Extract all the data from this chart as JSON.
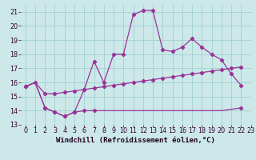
{
  "background_color": "#cce8e8",
  "grid_color": "#99cccc",
  "line_color": "#993399",
  "xlabel": "Windchill (Refroidissement éolien,°C)",
  "xlabel_fontsize": 6.5,
  "tick_fontsize": 5.8,
  "xlim": [
    -0.5,
    23
  ],
  "ylim": [
    13,
    21.5
  ],
  "yticks": [
    13,
    14,
    15,
    16,
    17,
    18,
    19,
    20,
    21
  ],
  "xticks": [
    0,
    1,
    2,
    3,
    4,
    5,
    6,
    7,
    8,
    9,
    10,
    11,
    12,
    13,
    14,
    15,
    16,
    17,
    18,
    19,
    20,
    21,
    22,
    23
  ],
  "line_bottom_x": [
    0,
    1,
    2,
    3,
    4,
    5,
    6,
    7,
    8,
    9,
    10,
    11,
    12,
    13,
    14,
    15,
    16,
    17,
    18,
    19,
    20,
    21,
    22
  ],
  "line_bottom_y": [
    15.7,
    16.0,
    14.2,
    13.9,
    13.6,
    13.9,
    14.0,
    14.0,
    14.0,
    14.0,
    14.0,
    14.0,
    14.0,
    14.0,
    14.0,
    14.0,
    14.0,
    14.0,
    14.0,
    14.0,
    14.0,
    14.1,
    14.2
  ],
  "line_top_x": [
    0,
    1,
    2,
    3,
    4,
    5,
    6,
    7,
    8,
    9,
    10,
    11,
    12,
    13,
    14,
    15,
    16,
    17,
    18,
    19,
    20,
    21,
    22
  ],
  "line_top_y": [
    15.7,
    16.0,
    14.2,
    13.9,
    13.6,
    13.9,
    15.5,
    17.5,
    16.0,
    18.0,
    18.0,
    20.8,
    21.1,
    21.1,
    18.3,
    18.2,
    18.5,
    19.1,
    18.5,
    18.0,
    17.6,
    16.6,
    15.8
  ],
  "line_avg_x": [
    0,
    1,
    2,
    3,
    4,
    5,
    6,
    7,
    8,
    9,
    10,
    11,
    12,
    13,
    14,
    15,
    16,
    17,
    18,
    19,
    20,
    21,
    22
  ],
  "line_avg_y": [
    15.7,
    16.0,
    15.2,
    15.2,
    15.3,
    15.4,
    15.5,
    15.6,
    15.7,
    15.8,
    15.9,
    16.0,
    16.1,
    16.2,
    16.3,
    16.4,
    16.5,
    16.6,
    16.7,
    16.8,
    16.9,
    17.0,
    17.1
  ],
  "bottom_markers_x": [
    2,
    3,
    4,
    5,
    6,
    7,
    22
  ],
  "bottom_markers_y": [
    14.2,
    13.9,
    13.6,
    13.9,
    14.0,
    14.0,
    14.2
  ],
  "top_markers_x": [
    0,
    2,
    3,
    4,
    5,
    6,
    7,
    8,
    9,
    10,
    11,
    12,
    13,
    14,
    15,
    16,
    17,
    18,
    19,
    20,
    21,
    22
  ],
  "top_markers_y": [
    15.7,
    14.2,
    13.9,
    13.6,
    13.9,
    15.5,
    17.5,
    16.0,
    18.0,
    18.0,
    20.8,
    21.1,
    21.1,
    18.3,
    18.2,
    18.5,
    19.1,
    18.5,
    18.0,
    17.6,
    16.6,
    15.8
  ],
  "avg_markers_x": [
    0,
    1,
    2,
    3,
    4,
    5,
    6,
    7,
    8,
    9,
    10,
    11,
    12,
    13,
    14,
    15,
    16,
    17,
    18,
    19,
    20,
    21,
    22
  ],
  "avg_markers_y": [
    15.7,
    16.0,
    15.2,
    15.2,
    15.3,
    15.4,
    15.5,
    15.6,
    15.7,
    15.8,
    15.9,
    16.0,
    16.1,
    16.2,
    16.3,
    16.4,
    16.5,
    16.6,
    16.7,
    16.8,
    16.9,
    17.0,
    17.1
  ]
}
